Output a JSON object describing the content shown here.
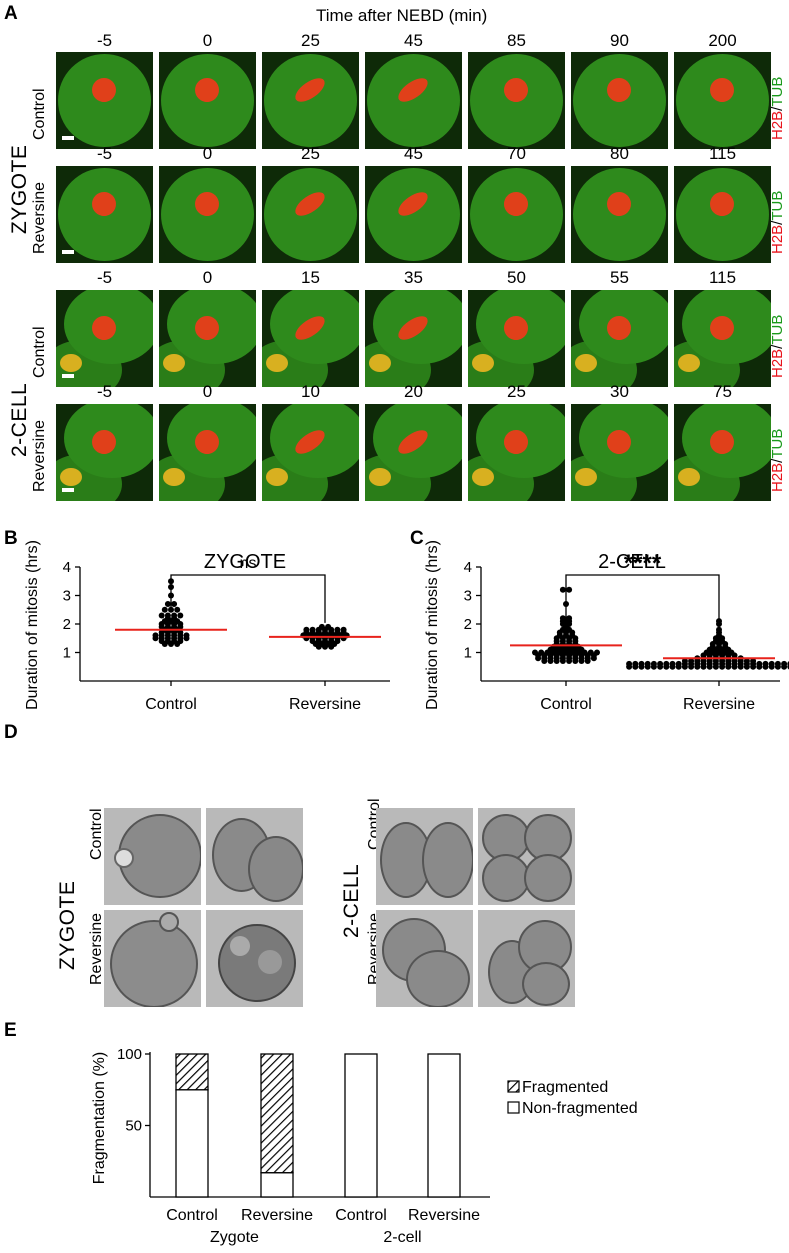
{
  "panel_a": {
    "label": "A",
    "title": "Time after NEBD (min)",
    "rows": [
      {
        "group": "ZYGOTE",
        "condition": "Control",
        "times": [
          "-5",
          "0",
          "25",
          "45",
          "85",
          "90",
          "200"
        ]
      },
      {
        "group": "ZYGOTE",
        "condition": "Reversine",
        "times": [
          "-5",
          "0",
          "25",
          "45",
          "70",
          "80",
          "115"
        ]
      },
      {
        "group": "2-CELL",
        "condition": "Control",
        "times": [
          "-5",
          "0",
          "15",
          "35",
          "50",
          "55",
          "115"
        ]
      },
      {
        "group": "2-CELL",
        "condition": "Reversine",
        "times": [
          "-5",
          "0",
          "10",
          "20",
          "25",
          "30",
          "75"
        ]
      }
    ],
    "stain_left": "H2B",
    "stain_sep": "/",
    "stain_right": "TUB",
    "stain_left_color": "#e8141c",
    "stain_right_color": "#1a9a1a",
    "group_zygote": "ZYGOTE",
    "group_2cell": "2-CELL"
  },
  "panel_b": {
    "label": "B"
  },
  "panel_c": {
    "label": "C"
  },
  "panel_d": {
    "label": "D",
    "group_zygote": "ZYGOTE",
    "group_2cell": "2-CELL",
    "row_control": "Control",
    "row_reversine": "Reversine"
  },
  "panel_e": {
    "label": "E"
  },
  "chart_data": [
    {
      "type": "scatter",
      "title": "ZYGOTE",
      "ylabel": "Duration of mitosis (hrs)",
      "categories": [
        "Control",
        "Reversine"
      ],
      "ylim": [
        0,
        4
      ],
      "yticks": [
        1,
        2,
        3,
        4
      ],
      "means": [
        1.8,
        1.55
      ],
      "mean_color": "#e8231c",
      "significance": "ns",
      "points": {
        "Control": [
          3.5,
          3.3,
          3.0,
          2.7,
          2.7,
          2.5,
          2.5,
          2.5,
          2.3,
          2.3,
          2.3,
          2.3,
          2.2,
          2.2,
          2.1,
          2.1,
          2.1,
          2.0,
          2.0,
          2.0,
          2.0,
          1.9,
          1.9,
          1.9,
          1.9,
          1.8,
          1.8,
          1.8,
          1.7,
          1.7,
          1.7,
          1.7,
          1.6,
          1.6,
          1.6,
          1.6,
          1.6,
          1.6,
          1.5,
          1.5,
          1.5,
          1.5,
          1.5,
          1.5,
          1.4,
          1.4,
          1.4,
          1.4,
          1.3,
          1.3,
          1.3
        ],
        "Reversine": [
          1.9,
          1.9,
          1.8,
          1.8,
          1.8,
          1.8,
          1.8,
          1.8,
          1.8,
          1.7,
          1.7,
          1.7,
          1.7,
          1.7,
          1.7,
          1.7,
          1.6,
          1.6,
          1.6,
          1.6,
          1.6,
          1.6,
          1.6,
          1.6,
          1.5,
          1.5,
          1.5,
          1.5,
          1.5,
          1.5,
          1.5,
          1.4,
          1.4,
          1.4,
          1.4,
          1.4,
          1.3,
          1.3,
          1.3,
          1.3,
          1.2,
          1.2,
          1.2
        ]
      }
    },
    {
      "type": "scatter",
      "title": "2-CELL",
      "ylabel": "Duration of mitosis (hrs)",
      "categories": [
        "Control",
        "Reversine"
      ],
      "ylim": [
        0,
        4
      ],
      "yticks": [
        1,
        2,
        3,
        4
      ],
      "means": [
        1.25,
        0.8
      ],
      "mean_color": "#e8231c",
      "significance": "****",
      "points": {
        "Control": [
          3.2,
          3.2,
          2.7,
          2.2,
          2.2,
          2.1,
          2.1,
          2.0,
          2.0,
          1.9,
          1.8,
          1.8,
          1.7,
          1.7,
          1.7,
          1.6,
          1.6,
          1.6,
          1.5,
          1.5,
          1.5,
          1.5,
          1.4,
          1.4,
          1.4,
          1.4,
          1.3,
          1.3,
          1.3,
          1.3,
          1.2,
          1.2,
          1.2,
          1.2,
          1.2,
          1.1,
          1.1,
          1.1,
          1.1,
          1.1,
          1.1,
          1.0,
          1.0,
          1.0,
          1.0,
          1.0,
          1.0,
          1.0,
          1.0,
          1.0,
          1.0,
          1.0,
          0.9,
          0.9,
          0.9,
          0.9,
          0.9,
          0.9,
          0.9,
          0.9,
          0.9,
          0.9,
          0.8,
          0.8,
          0.8,
          0.8,
          0.8,
          0.8,
          0.8,
          0.8,
          0.8,
          0.8,
          0.7,
          0.7,
          0.7,
          0.7,
          0.7,
          0.7,
          0.7,
          0.7
        ],
        "Reversine": [
          2.1,
          2.0,
          1.8,
          1.7,
          1.6,
          1.5,
          1.5,
          1.4,
          1.4,
          1.3,
          1.3,
          1.3,
          1.2,
          1.2,
          1.2,
          1.1,
          1.1,
          1.1,
          1.1,
          1.0,
          1.0,
          1.0,
          1.0,
          1.0,
          0.9,
          0.9,
          0.9,
          0.9,
          0.9,
          0.9,
          0.8,
          0.8,
          0.8,
          0.8,
          0.8,
          0.8,
          0.8,
          0.8,
          0.7,
          0.7,
          0.7,
          0.7,
          0.7,
          0.7,
          0.7,
          0.7,
          0.7,
          0.7,
          0.7,
          0.7,
          0.6,
          0.6,
          0.6,
          0.6,
          0.6,
          0.6,
          0.6,
          0.6,
          0.6,
          0.6,
          0.6,
          0.6,
          0.6,
          0.6,
          0.6,
          0.6,
          0.6,
          0.6,
          0.6,
          0.6,
          0.6,
          0.6,
          0.6,
          0.6,
          0.6,
          0.6,
          0.6,
          0.6,
          0.6,
          0.6,
          0.5,
          0.5,
          0.5,
          0.5,
          0.5,
          0.5,
          0.5,
          0.5,
          0.5,
          0.5,
          0.5,
          0.5,
          0.5,
          0.5,
          0.5,
          0.5,
          0.5,
          0.5,
          0.5,
          0.5,
          0.5,
          0.5,
          0.5,
          0.5,
          0.5,
          0.5,
          0.5,
          0.5,
          0.5,
          0.5
        ]
      }
    },
    {
      "type": "bar",
      "stacked": true,
      "ylabel": "Fragmentation (%)",
      "categories": [
        "Control",
        "Reversine",
        "Control",
        "Reversine"
      ],
      "groups": [
        "Zygote",
        "2-cell"
      ],
      "ylim": [
        0,
        100
      ],
      "yticks": [
        50,
        100
      ],
      "series": [
        {
          "name": "Non-fragmented",
          "values": [
            75,
            17,
            100,
            100
          ],
          "fill": "white"
        },
        {
          "name": "Fragmented",
          "values": [
            25,
            83,
            0,
            0
          ],
          "fill": "hatched"
        }
      ]
    }
  ]
}
